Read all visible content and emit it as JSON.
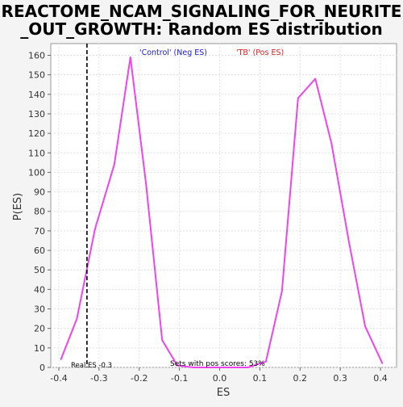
{
  "chart_data": {
    "type": "line",
    "title": "REACTOME_NCAM_SIGNALING_FOR_NEURITE_OUT_GROWTH: Random ES distribution",
    "title_lines": [
      "REACTOME_NCAM_SIGNALING_FOR_NEURITE",
      "_OUT_GROWTH: Random ES distribution"
    ],
    "xlabel": "ES",
    "ylabel": "P(ES)",
    "xlim": [
      -0.42,
      0.44
    ],
    "ylim": [
      0,
      166
    ],
    "x_ticks": [
      -0.4,
      -0.3,
      -0.2,
      -0.1,
      0.0,
      0.1,
      0.2,
      0.3,
      0.4
    ],
    "x_tick_labels": [
      "-0.4",
      "-0.3",
      "-0.2",
      "-0.1",
      "0.0",
      "0.1",
      "0.2",
      "0.3",
      "0.4"
    ],
    "y_ticks": [
      0,
      10,
      20,
      30,
      40,
      50,
      60,
      70,
      80,
      90,
      100,
      110,
      120,
      130,
      140,
      150,
      160
    ],
    "grid": true,
    "legend": [
      {
        "label": "'Control' (Neg ES)",
        "color": "#2020cc"
      },
      {
        "label": "'TB' (Pos ES)",
        "color": "#dd2020"
      }
    ],
    "series": [
      {
        "color": "#ee44ee",
        "x": [
          -0.395,
          -0.355,
          -0.31,
          -0.262,
          -0.222,
          -0.183,
          -0.143,
          -0.105,
          -0.065,
          -0.025,
          0.02,
          0.07,
          0.115,
          0.155,
          0.195,
          0.238,
          0.278,
          0.322,
          0.362,
          0.405
        ],
        "y": [
          4,
          25,
          71,
          104,
          159,
          94,
          14,
          1,
          0,
          0,
          0,
          0,
          3,
          39,
          138,
          148,
          115,
          64,
          21,
          2
        ]
      }
    ],
    "reference_line": {
      "x": -0.33,
      "label": "Real ES -0.3",
      "style": "dashed",
      "color": "#000000"
    },
    "annotation": "Sets with pos scores: 53%"
  }
}
